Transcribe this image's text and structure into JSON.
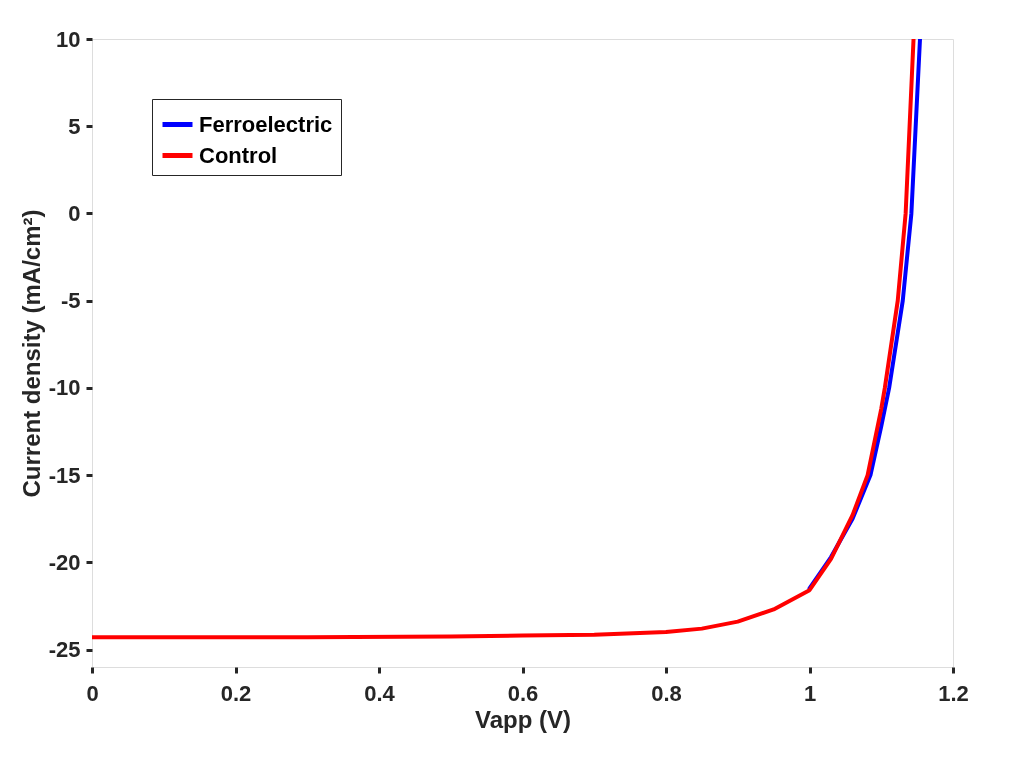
{
  "chart_data": {
    "type": "line",
    "xlabel": "Vapp (V)",
    "ylabel": "Current density (mA/cm²)",
    "xlim": [
      0,
      1.2
    ],
    "xticks": [
      0,
      0.2,
      0.4,
      0.6,
      0.8,
      1,
      1.2
    ],
    "ylim": [
      -26,
      10
    ],
    "yticks": [
      -25,
      -20,
      -15,
      -10,
      -5,
      0,
      5,
      10
    ],
    "grid": false,
    "legend": "top left",
    "marker": "none",
    "line_style": "solid",
    "series": [
      {
        "name": "Ferroelectric",
        "color": "#0000ff",
        "x": [
          1.0,
          1.03,
          1.06,
          1.085,
          1.1,
          1.111,
          1.13,
          1.142,
          1.154
        ],
        "values": [
          -21.5,
          -19.7,
          -17.5,
          -15.0,
          -12.2,
          -10.0,
          -5.0,
          0,
          10
        ]
      },
      {
        "name": "Control",
        "color": "#ff0000",
        "x": [
          0,
          0.3,
          0.5,
          0.6,
          0.7,
          0.8,
          0.85,
          0.9,
          0.95,
          1.0,
          1.03,
          1.06,
          1.081,
          1.1,
          1.105,
          1.123,
          1.134,
          1.145
        ],
        "values": [
          -24.3,
          -24.3,
          -24.25,
          -24.2,
          -24.15,
          -24.0,
          -23.8,
          -23.4,
          -22.7,
          -21.6,
          -19.8,
          -17.3,
          -15.0,
          -11.2,
          -10.0,
          -5.0,
          0,
          10
        ]
      }
    ]
  }
}
